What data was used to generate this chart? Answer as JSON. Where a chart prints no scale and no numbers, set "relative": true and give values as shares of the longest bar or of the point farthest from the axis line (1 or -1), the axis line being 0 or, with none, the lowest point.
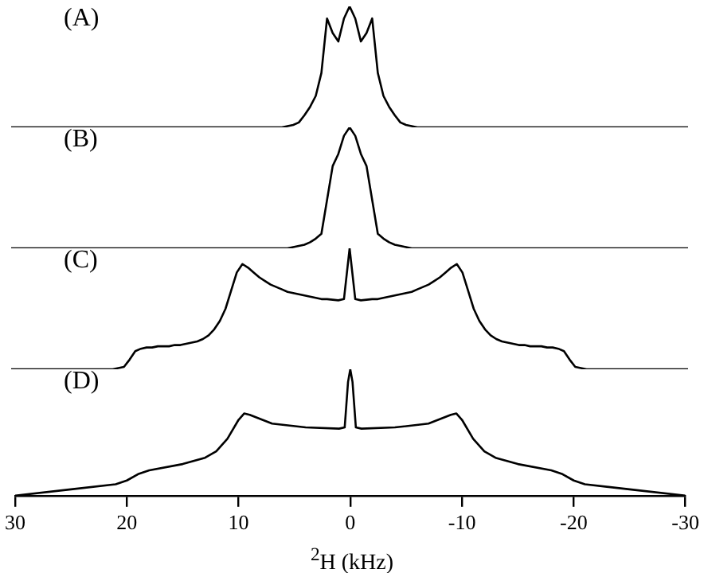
{
  "chart_data": [
    {
      "type": "line",
      "relative": true,
      "annotations": [
        "(A)"
      ],
      "tick_labels": false,
      "grid": false,
      "legend": false,
      "marker": "none",
      "line_style": "solid",
      "categories": [
        null,
        null,
        null,
        null,
        null,
        null,
        null,
        null,
        null,
        null,
        null,
        null,
        null,
        null,
        null,
        null,
        null,
        null,
        null,
        null,
        null,
        null,
        null,
        null,
        null,
        null,
        null,
        null,
        null,
        null,
        null,
        null,
        null,
        null,
        null,
        null,
        null,
        null,
        null,
        null,
        null,
        null,
        null,
        null,
        null,
        null,
        null,
        null,
        null,
        null,
        null,
        null,
        null,
        null,
        null,
        null,
        null,
        null,
        null,
        null,
        null,
        null,
        null,
        null,
        null,
        null,
        null,
        null,
        null,
        null,
        null,
        null,
        null,
        null,
        null,
        null,
        null,
        null,
        null,
        null,
        null,
        null,
        null,
        null,
        null,
        null,
        null,
        null,
        null,
        null,
        null,
        null,
        null,
        null,
        null,
        null,
        null,
        null,
        null,
        null,
        null,
        null,
        null,
        null,
        null,
        null,
        null,
        null,
        null,
        null,
        null,
        null,
        null,
        null,
        null,
        null,
        null,
        null,
        null,
        null,
        null
      ],
      "series": [
        {
          "color": "#000000",
          "values": [
            0,
            0,
            0,
            0,
            0,
            0,
            0,
            0,
            0,
            0,
            0,
            0,
            0,
            0,
            0,
            0,
            0,
            0,
            0,
            0,
            0,
            0,
            0,
            0,
            0,
            0,
            0,
            0,
            0,
            0,
            0,
            0,
            0,
            0,
            0,
            0,
            0,
            0,
            0,
            0,
            0,
            0,
            0,
            0,
            0,
            0,
            0,
            0,
            0,
            0.01,
            0.02,
            0.04,
            0.1,
            0.17,
            0.26,
            0.45,
            0.9,
            0.78,
            0.71,
            0.9,
            1,
            0.9,
            0.71,
            0.78,
            0.9,
            0.45,
            0.26,
            0.17,
            0.1,
            0.04,
            0.02,
            0.01,
            0,
            0,
            0,
            0,
            0,
            0,
            0,
            0,
            0,
            0,
            0,
            0,
            0,
            0,
            0,
            0,
            0,
            0,
            0,
            0,
            0,
            0,
            0,
            0,
            0,
            0,
            0,
            0,
            0,
            0,
            0,
            0,
            0,
            0,
            0,
            0,
            0,
            0,
            0,
            0,
            0,
            0,
            0,
            0,
            0,
            0,
            0,
            0,
            0
          ]
        }
      ]
    },
    {
      "type": "line",
      "relative": true,
      "annotations": [
        "(B)"
      ],
      "tick_labels": false,
      "grid": false,
      "legend": false,
      "marker": "none",
      "line_style": "solid",
      "categories": [
        null,
        null,
        null,
        null,
        null,
        null,
        null,
        null,
        null,
        null,
        null,
        null,
        null,
        null,
        null,
        null,
        null,
        null,
        null,
        null,
        null,
        null,
        null,
        null,
        null,
        null,
        null,
        null,
        null,
        null,
        null,
        null,
        null,
        null,
        null,
        null,
        null,
        null,
        null,
        null,
        null,
        null,
        null,
        null,
        null,
        null,
        null,
        null,
        null,
        null,
        null,
        null,
        null,
        null,
        null,
        null,
        null,
        null,
        null,
        null,
        null,
        null,
        null,
        null,
        null,
        null,
        null,
        null,
        null,
        null,
        null,
        null,
        null,
        null,
        null,
        null,
        null,
        null,
        null,
        null,
        null,
        null,
        null,
        null,
        null,
        null,
        null,
        null,
        null,
        null,
        null,
        null,
        null,
        null,
        null,
        null,
        null,
        null,
        null,
        null,
        null,
        null,
        null,
        null,
        null,
        null,
        null,
        null,
        null,
        null,
        null,
        null,
        null,
        null,
        null,
        null,
        null,
        null,
        null,
        null,
        null
      ],
      "series": [
        {
          "color": "#000000",
          "values": [
            0,
            0,
            0,
            0,
            0,
            0,
            0,
            0,
            0,
            0,
            0,
            0,
            0,
            0,
            0,
            0,
            0,
            0,
            0,
            0,
            0,
            0,
            0,
            0,
            0,
            0,
            0,
            0,
            0,
            0,
            0,
            0,
            0,
            0,
            0,
            0,
            0,
            0,
            0,
            0,
            0,
            0,
            0,
            0,
            0,
            0,
            0,
            0,
            0,
            0,
            0.01,
            0.02,
            0.03,
            0.05,
            0.08,
            0.12,
            0.4,
            0.68,
            0.78,
            0.93,
            1,
            0.93,
            0.78,
            0.68,
            0.4,
            0.12,
            0.08,
            0.05,
            0.03,
            0.02,
            0.01,
            0,
            0,
            0,
            0,
            0,
            0,
            0,
            0,
            0,
            0,
            0,
            0,
            0,
            0,
            0,
            0,
            0,
            0,
            0,
            0,
            0,
            0,
            0,
            0,
            0,
            0,
            0,
            0,
            0,
            0,
            0,
            0,
            0,
            0,
            0,
            0,
            0,
            0,
            0,
            0,
            0,
            0,
            0,
            0,
            0,
            0,
            0,
            0,
            0,
            0
          ]
        }
      ]
    },
    {
      "type": "line",
      "relative": true,
      "annotations": [
        "(C)"
      ],
      "tick_labels": false,
      "grid": false,
      "legend": false,
      "marker": "none",
      "line_style": "solid",
      "categories": [
        null,
        null,
        null,
        null,
        null,
        null,
        null,
        null,
        null,
        null,
        null,
        null,
        null,
        null,
        null,
        null,
        null,
        null,
        null,
        null,
        null,
        null,
        null,
        null,
        null,
        null,
        null,
        null,
        null,
        null,
        null,
        null,
        null,
        null,
        null,
        null,
        null,
        null,
        null,
        null,
        null,
        null,
        null,
        null,
        null,
        null,
        null,
        null,
        null,
        null,
        null,
        null,
        null,
        null,
        null,
        null,
        null,
        null,
        null,
        null,
        null,
        null,
        null,
        null,
        null,
        null,
        null,
        null,
        null,
        null,
        null,
        null,
        null,
        null,
        null,
        null,
        null,
        null,
        null,
        null,
        null,
        null,
        null,
        null,
        null,
        null,
        null,
        null,
        null,
        null,
        null,
        null,
        null,
        null,
        null,
        null,
        null,
        null,
        null,
        null,
        null,
        null,
        null,
        null,
        null,
        null,
        null,
        null,
        null,
        null,
        null,
        null,
        null,
        null,
        null,
        null,
        null,
        null,
        null,
        null,
        null
      ],
      "series": [
        {
          "color": "#000000",
          "values": [
            0,
            0,
            0,
            0,
            0,
            0,
            0,
            0,
            0,
            0,
            0,
            0,
            0,
            0,
            0,
            0,
            0,
            0,
            0,
            0.01,
            0.02,
            0.08,
            0.15,
            0.17,
            0.18,
            0.18,
            0.19,
            0.19,
            0.19,
            0.2,
            0.2,
            0.21,
            0.22,
            0.23,
            0.25,
            0.28,
            0.33,
            0.4,
            0.5,
            0.65,
            0.8,
            0.87,
            0.84,
            0.8,
            0.76,
            0.73,
            0.7,
            0.68,
            0.66,
            0.64,
            0.63,
            0.62,
            0.61,
            0.6,
            0.59,
            0.58,
            0.58,
            0.575,
            0.57,
            0.58,
            1,
            0.58,
            0.57,
            0.575,
            0.58,
            0.58,
            0.59,
            0.6,
            0.61,
            0.62,
            0.63,
            0.64,
            0.66,
            0.68,
            0.7,
            0.73,
            0.76,
            0.8,
            0.84,
            0.87,
            0.8,
            0.65,
            0.5,
            0.4,
            0.33,
            0.28,
            0.25,
            0.23,
            0.22,
            0.21,
            0.2,
            0.2,
            0.19,
            0.19,
            0.19,
            0.18,
            0.18,
            0.17,
            0.15,
            0.08,
            0.02,
            0.01,
            0,
            0,
            0,
            0,
            0,
            0,
            0,
            0,
            0,
            0,
            0,
            0,
            0,
            0,
            0,
            0,
            0,
            0,
            0
          ]
        }
      ]
    },
    {
      "type": "line",
      "relative": true,
      "annotations": [
        "(D)"
      ],
      "tick_labels": "x",
      "xlim": [
        30,
        -30
      ],
      "xticks": [
        30,
        20,
        10,
        0,
        -10,
        -20,
        -30
      ],
      "xlabel": "$^{2}$H (kHz)",
      "grid": false,
      "legend": false,
      "marker": "none",
      "line_style": "solid",
      "series": [
        {
          "color": "#000000",
          "x": [
            30,
            25,
            21,
            20,
            19,
            18,
            15,
            13,
            12,
            11,
            10,
            9.5,
            9,
            7,
            4,
            1,
            0.5,
            0.2,
            0,
            -0.2,
            -0.5,
            -1,
            -4,
            -7,
            -9,
            -9.5,
            -10,
            -11,
            -12,
            -13,
            -15,
            -18,
            -19,
            -20,
            -21,
            -25,
            -30
          ],
          "values": [
            0,
            0.05,
            0.09,
            0.12,
            0.17,
            0.2,
            0.25,
            0.3,
            0.35,
            0.45,
            0.6,
            0.65,
            0.64,
            0.57,
            0.54,
            0.53,
            0.54,
            0.9,
            1,
            0.9,
            0.54,
            0.53,
            0.54,
            0.57,
            0.64,
            0.65,
            0.6,
            0.45,
            0.35,
            0.3,
            0.25,
            0.2,
            0.17,
            0.12,
            0.09,
            0.05,
            0
          ]
        }
      ]
    }
  ]
}
